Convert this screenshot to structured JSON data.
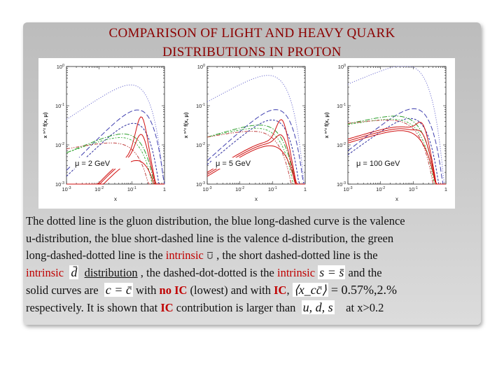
{
  "title": {
    "line1": "COMPARISON  OF  LIGHT AND  HEAVY  QUARK",
    "line2": "DISTRIBUTIONS  IN   PROTON"
  },
  "colors": {
    "title": "#8b0000",
    "highlight": "#c00000",
    "gluon": "#7070d0",
    "valence_u": "#4040b0",
    "valence_d": "#3030a0",
    "intrinsic_u": "#30a030",
    "intrinsic_d": "#40b040",
    "intrinsic_s": "#c04040",
    "charm": "#d01010"
  },
  "chart_data": [
    {
      "type": "line",
      "annotation": "μ = 2 GeV",
      "xlabel": "x",
      "ylabel": "x ^{3/2} f(x, μ)",
      "x_ticks": [
        "10^{-3}",
        "10^{-2}",
        "10^{-1}",
        "1"
      ],
      "y_ticks": [
        "10^{0}",
        "10^{-1}",
        "10^{-2}",
        "10^{-3}"
      ],
      "x_scale": "log",
      "y_scale": "log",
      "xlim": [
        0.001,
        1
      ],
      "ylim": [
        0.001,
        1
      ]
    },
    {
      "type": "line",
      "annotation": "μ = 5 GeV",
      "xlabel": "x",
      "ylabel": "x ^{3/2} f(x, μ)",
      "x_ticks": [
        "10^{-3}",
        "10^{-2}",
        "10^{-1}",
        "1"
      ],
      "y_ticks": [
        "10^{0}",
        "10^{-1}",
        "10^{-2}",
        "10^{-3}"
      ],
      "x_scale": "log",
      "y_scale": "log",
      "xlim": [
        0.001,
        1
      ],
      "ylim": [
        0.001,
        1
      ]
    },
    {
      "type": "line",
      "annotation": "μ = 100 GeV",
      "xlabel": "x",
      "ylabel": "x ^{3/2} f(x, μ)",
      "x_ticks": [
        "10^{-3}",
        "10^{-2}",
        "10^{-1}",
        "1"
      ],
      "y_ticks": [
        "10^{0}",
        "10^{-1}",
        "10^{-2}",
        "10^{-3}"
      ],
      "x_scale": "log",
      "y_scale": "log",
      "xlim": [
        0.001,
        1
      ],
      "ylim": [
        0.001,
        1
      ]
    }
  ],
  "text": {
    "l1": "The dotted line is the gluon distribution, the blue long-dashed curve is the valence",
    "l2": "u-distribution, the blue short-dashed line is the valence d-distribution, the green",
    "l3a": "long-dashed-dotted line is the ",
    "l3b": "intrinsic",
    "l3c": " , the short dashed-dotted  line  is the",
    "l4a": "intrinsic",
    "l4b": "distribution",
    "l4c": " , the dashed-dot-dotted   is the ",
    "l4d": "intrinsic",
    "l4e": "  and the",
    "l5a": "solid curves are ",
    "l5b": "  with ",
    "l5c": "no IC",
    "l5d": " (lowest) and with ",
    "l5e": "IC",
    "l5f": ",",
    "l6a": "respectively.  It is shown that ",
    "l6b": "IC",
    "l6c": " contribution is larger than ",
    "l6d": " at x>0.2"
  },
  "math": {
    "d_bar": "d̄",
    "s_eq": "s = s̄",
    "c_eq": "c = c̄",
    "x_cc": "⟨x_cc̄⟩",
    "pct": "= 0.57%,2.%",
    "uds": "u, d, s"
  }
}
